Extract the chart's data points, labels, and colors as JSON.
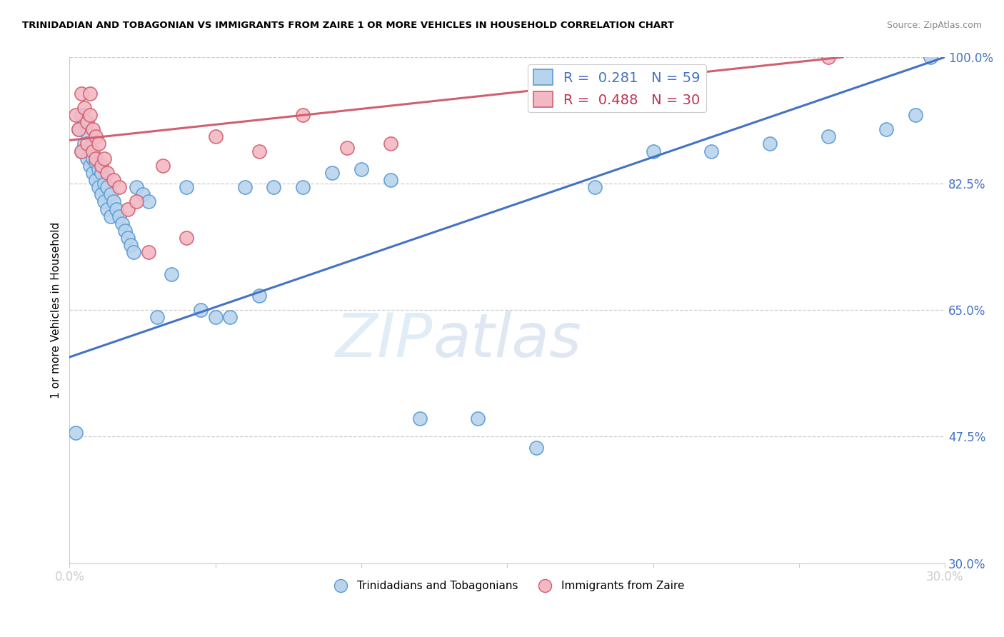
{
  "title": "TRINIDADIAN AND TOBAGONIAN VS IMMIGRANTS FROM ZAIRE 1 OR MORE VEHICLES IN HOUSEHOLD CORRELATION CHART",
  "source": "Source: ZipAtlas.com",
  "ylabel": "1 or more Vehicles in Household",
  "xlim": [
    0.0,
    0.3
  ],
  "ylim": [
    0.3,
    1.0
  ],
  "xticks": [
    0.0,
    0.05,
    0.1,
    0.15,
    0.2,
    0.25,
    0.3
  ],
  "xticklabels": [
    "0.0%",
    "",
    "",
    "",
    "",
    "",
    "30.0%"
  ],
  "yticks": [
    0.3,
    0.475,
    0.65,
    0.825,
    1.0
  ],
  "yticklabels": [
    "30.0%",
    "47.5%",
    "65.0%",
    "82.5%",
    "100.0%"
  ],
  "blue_R": 0.281,
  "blue_N": 59,
  "pink_R": 0.488,
  "pink_N": 30,
  "blue_face": "#b8d4ed",
  "blue_edge": "#5b9bd5",
  "pink_face": "#f4b8c4",
  "pink_edge": "#d06070",
  "blue_line": "#4472c4",
  "pink_line": "#d06070",
  "watermark_zip": "ZIP",
  "watermark_atlas": "atlas",
  "blue_x": [
    0.002,
    0.003,
    0.004,
    0.004,
    0.005,
    0.005,
    0.006,
    0.006,
    0.007,
    0.007,
    0.008,
    0.008,
    0.009,
    0.009,
    0.01,
    0.01,
    0.011,
    0.011,
    0.012,
    0.012,
    0.013,
    0.013,
    0.014,
    0.014,
    0.015,
    0.016,
    0.017,
    0.018,
    0.019,
    0.02,
    0.021,
    0.022,
    0.023,
    0.025,
    0.027,
    0.03,
    0.035,
    0.04,
    0.045,
    0.05,
    0.055,
    0.06,
    0.065,
    0.07,
    0.08,
    0.09,
    0.1,
    0.11,
    0.12,
    0.14,
    0.16,
    0.18,
    0.2,
    0.22,
    0.24,
    0.26,
    0.28,
    0.29,
    0.295
  ],
  "blue_y": [
    0.48,
    0.9,
    0.87,
    0.92,
    0.91,
    0.88,
    0.86,
    0.895,
    0.85,
    0.875,
    0.84,
    0.86,
    0.83,
    0.855,
    0.82,
    0.845,
    0.81,
    0.84,
    0.8,
    0.825,
    0.79,
    0.82,
    0.78,
    0.81,
    0.8,
    0.79,
    0.78,
    0.77,
    0.76,
    0.75,
    0.74,
    0.73,
    0.82,
    0.81,
    0.8,
    0.64,
    0.7,
    0.82,
    0.65,
    0.64,
    0.64,
    0.82,
    0.67,
    0.82,
    0.82,
    0.84,
    0.845,
    0.83,
    0.5,
    0.5,
    0.46,
    0.82,
    0.87,
    0.87,
    0.88,
    0.89,
    0.9,
    0.92,
    1.0
  ],
  "pink_x": [
    0.002,
    0.003,
    0.004,
    0.004,
    0.005,
    0.006,
    0.006,
    0.007,
    0.007,
    0.008,
    0.008,
    0.009,
    0.009,
    0.01,
    0.011,
    0.012,
    0.013,
    0.015,
    0.017,
    0.02,
    0.023,
    0.027,
    0.032,
    0.04,
    0.05,
    0.065,
    0.08,
    0.095,
    0.11,
    0.26
  ],
  "pink_y": [
    0.92,
    0.9,
    0.95,
    0.87,
    0.93,
    0.91,
    0.88,
    0.92,
    0.95,
    0.9,
    0.87,
    0.89,
    0.86,
    0.88,
    0.85,
    0.86,
    0.84,
    0.83,
    0.82,
    0.79,
    0.8,
    0.73,
    0.85,
    0.75,
    0.89,
    0.87,
    0.92,
    0.875,
    0.88,
    1.0
  ],
  "blue_trend_x": [
    0.0,
    0.3
  ],
  "blue_trend_y": [
    0.585,
    1.0
  ],
  "pink_trend_x": [
    0.0,
    0.265
  ],
  "pink_trend_y": [
    0.885,
    1.0
  ]
}
